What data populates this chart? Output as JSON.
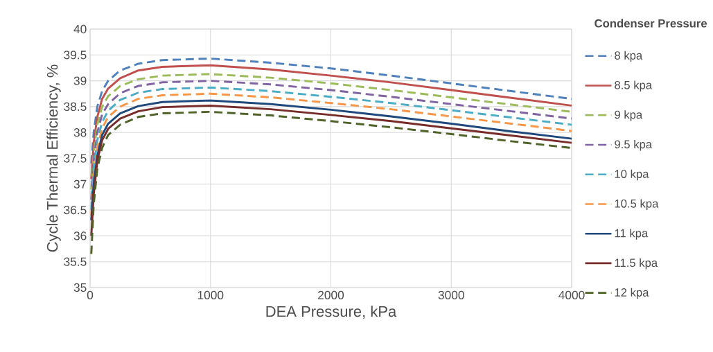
{
  "chart_data": {
    "type": "line",
    "xlabel": "DEA Pressure, kPa",
    "ylabel": "Cycle Thermal Efficiency, %",
    "legend_title": "Condenser Pressure",
    "x": [
      10,
      30,
      60,
      100,
      150,
      250,
      400,
      600,
      1000,
      1500,
      2000,
      2500,
      3000,
      3500,
      4000
    ],
    "xlim": [
      0,
      4000
    ],
    "xticks": [
      0,
      1000,
      2000,
      3000,
      4000
    ],
    "ylim": [
      35,
      40
    ],
    "yticks": [
      35,
      35.5,
      36,
      36.5,
      37,
      37.5,
      38,
      38.5,
      39,
      39.5,
      40
    ],
    "grid": true,
    "legend": "right",
    "series": [
      {
        "name": "8 kpa",
        "color": "#4f81bd",
        "line_style": "dashed",
        "values": [
          37.4,
          38.0,
          38.5,
          38.8,
          39.0,
          39.2,
          39.33,
          39.4,
          39.43,
          39.35,
          39.24,
          39.1,
          38.95,
          38.8,
          38.65
        ]
      },
      {
        "name": "8.5 kpa",
        "color": "#c0504d",
        "line_style": "solid",
        "values": [
          37.1,
          37.8,
          38.3,
          38.65,
          38.85,
          39.05,
          39.2,
          39.27,
          39.3,
          39.22,
          39.1,
          38.97,
          38.82,
          38.67,
          38.52
        ]
      },
      {
        "name": "9 kpa",
        "color": "#9bbb59",
        "line_style": "dashed",
        "values": [
          36.9,
          37.6,
          38.15,
          38.5,
          38.7,
          38.9,
          39.03,
          39.1,
          39.13,
          39.06,
          38.95,
          38.82,
          38.68,
          38.54,
          38.4
        ]
      },
      {
        "name": "9.5 kpa",
        "color": "#8064a2",
        "line_style": "dashed",
        "values": [
          36.7,
          37.45,
          38.0,
          38.35,
          38.55,
          38.76,
          38.9,
          38.97,
          39.0,
          38.93,
          38.82,
          38.69,
          38.55,
          38.41,
          38.27
        ]
      },
      {
        "name": "10 kpa",
        "color": "#4bacc6",
        "line_style": "dashed",
        "values": [
          36.5,
          37.3,
          37.85,
          38.2,
          38.42,
          38.63,
          38.77,
          38.84,
          38.87,
          38.8,
          38.69,
          38.57,
          38.43,
          38.29,
          38.15
        ]
      },
      {
        "name": "10.5 kpa",
        "color": "#f79646",
        "line_style": "dashed",
        "values": [
          36.4,
          37.15,
          37.7,
          38.08,
          38.3,
          38.5,
          38.65,
          38.72,
          38.75,
          38.68,
          38.57,
          38.45,
          38.31,
          38.17,
          38.03
        ]
      },
      {
        "name": "11 kpa",
        "color": "#1f497d",
        "line_style": "solid",
        "values": [
          36.3,
          37.0,
          37.55,
          37.95,
          38.17,
          38.37,
          38.51,
          38.59,
          38.62,
          38.55,
          38.44,
          38.31,
          38.17,
          38.02,
          37.88
        ]
      },
      {
        "name": "11.5 kpa",
        "color": "#772c2a",
        "line_style": "solid",
        "values": [
          36.0,
          36.8,
          37.45,
          37.85,
          38.07,
          38.27,
          38.41,
          38.49,
          38.52,
          38.45,
          38.34,
          38.22,
          38.08,
          37.94,
          37.8
        ]
      },
      {
        "name": "12 kpa",
        "color": "#4f6228",
        "line_style": "dashed",
        "values": [
          35.65,
          36.6,
          37.3,
          37.7,
          37.95,
          38.15,
          38.3,
          38.37,
          38.4,
          38.33,
          38.22,
          38.1,
          37.97,
          37.83,
          37.7
        ]
      }
    ]
  }
}
